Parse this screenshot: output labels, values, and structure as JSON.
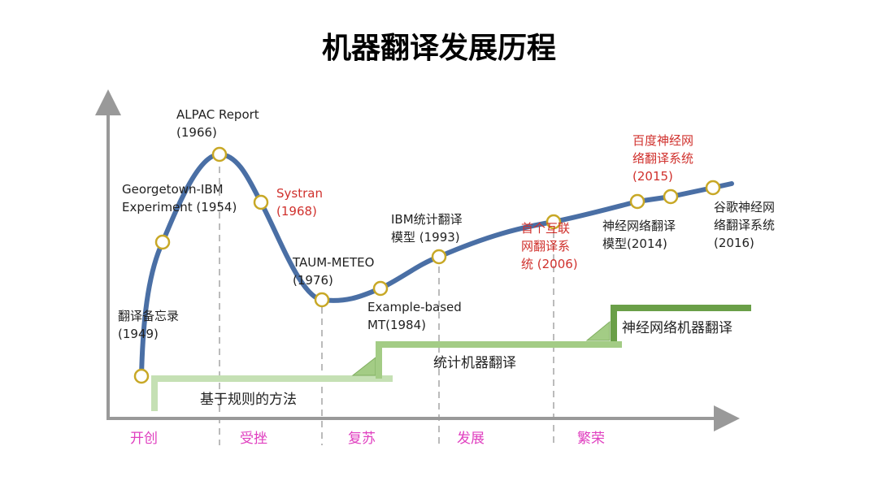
{
  "title": "机器翻译发展历程",
  "colors": {
    "curve": "#4a6fa5",
    "node": "#c8a826",
    "axis": "#999999",
    "rule": "#c5e0b4",
    "stat": "#a3cc85",
    "neural": "#6a9f48",
    "phase": "#e040c0",
    "highlight": "#d0312d"
  },
  "events": [
    {
      "lines": [
        "翻译备忘录",
        "(1949)"
      ],
      "highlight": false
    },
    {
      "lines": [
        "Georgetown-IBM",
        "Experiment (1954)"
      ],
      "highlight": false
    },
    {
      "lines": [
        "ALPAC Report",
        "(1966)"
      ],
      "highlight": false
    },
    {
      "lines": [
        "Systran",
        "(1968)"
      ],
      "highlight": true
    },
    {
      "lines": [
        "TAUM-METEO",
        "(1976)"
      ],
      "highlight": false
    },
    {
      "lines": [
        "Example-based",
        "MT(1984)"
      ],
      "highlight": false
    },
    {
      "lines": [
        "IBM统计翻译",
        "模型 (1993)"
      ],
      "highlight": false
    },
    {
      "lines": [
        "首个互联",
        "网翻译系",
        "统 (2006)"
      ],
      "highlight": true
    },
    {
      "lines": [
        "神经网络翻译",
        "模型(2014)"
      ],
      "highlight": false
    },
    {
      "lines": [
        "百度神经网",
        "络翻译系统",
        "(2015)"
      ],
      "highlight": true
    },
    {
      "lines": [
        "谷歌神经网",
        "络翻译系统",
        "(2016)"
      ],
      "highlight": false
    }
  ],
  "phases": [
    "开创",
    "受挫",
    "复苏",
    "发展",
    "繁荣"
  ],
  "methods": [
    "基于规则的方法",
    "统计机器翻译",
    "神经网络机器翻译"
  ]
}
